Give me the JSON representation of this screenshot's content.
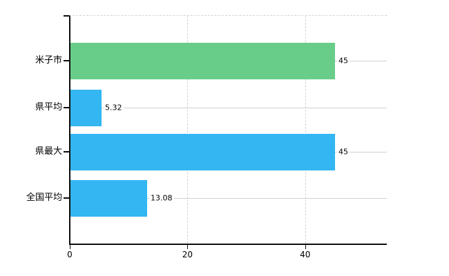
{
  "chart_data": {
    "type": "bar",
    "orientation": "horizontal",
    "title": "",
    "xlabel": "",
    "ylabel": "",
    "categories": [
      "米子市",
      "県平均",
      "県最大",
      "全国平均"
    ],
    "values": [
      45,
      5.32,
      45,
      13.08
    ],
    "value_labels": [
      "45",
      "5.32",
      "45",
      "13.08"
    ],
    "bar_colors": [
      "#69cd8a",
      "#33b6f2",
      "#33b6f2",
      "#33b6f2"
    ],
    "x_tick_labels": [
      "0",
      "20",
      "40"
    ],
    "x_tick_values": [
      0,
      20,
      40
    ],
    "xlim": [
      0,
      54
    ],
    "grid": "vertical-dashed-at-ticks, horizontal-solid-at-categories",
    "legend": "none",
    "colors": {
      "axis": "#0d0d0d",
      "gridline_dashed": "#d2d2d2",
      "category_line": "#ccd3cc",
      "text": "#000000",
      "background": "#ffffff"
    }
  }
}
